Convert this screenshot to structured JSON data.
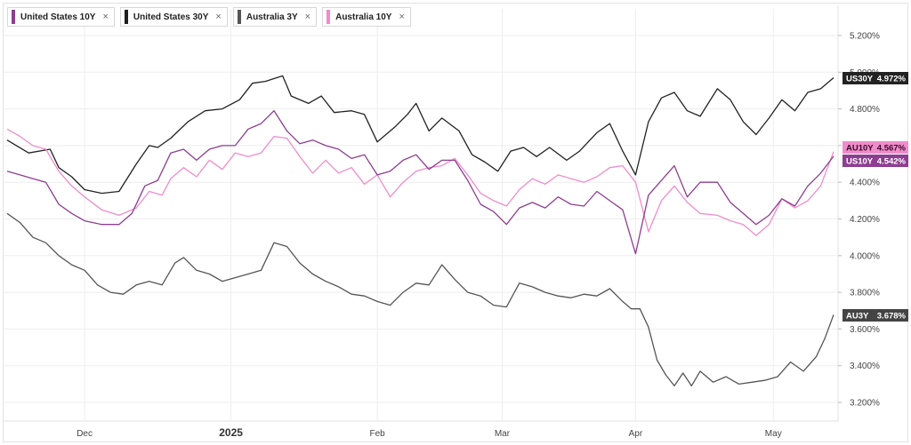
{
  "legend": [
    {
      "name": "United States 10Y",
      "color": "#8e3d91",
      "close": "×"
    },
    {
      "name": "United States 30Y",
      "color": "#1f1f1f",
      "close": "×"
    },
    {
      "name": "Australia 3Y",
      "color": "#555555",
      "close": "×"
    },
    {
      "name": "Australia 10Y",
      "color": "#f08ccb",
      "close": "×"
    }
  ],
  "chart_data": {
    "type": "line",
    "x_axis": {
      "labels": [
        {
          "label": "Dec",
          "index": 18
        },
        {
          "label": "2025",
          "index": 52,
          "bold": true
        },
        {
          "label": "Feb",
          "index": 86
        },
        {
          "label": "Mar",
          "index": 115
        },
        {
          "label": "Apr",
          "index": 146
        },
        {
          "label": "May",
          "index": 178
        }
      ],
      "count": 193
    },
    "y_axis": {
      "ticks": [
        "5.200%",
        "5.000%",
        "4.800%",
        "4.600%",
        "4.400%",
        "4.200%",
        "4.000%",
        "3.800%",
        "3.600%",
        "3.400%",
        "3.200%"
      ],
      "tick_values": [
        5.2,
        5.0,
        4.8,
        4.6,
        4.4,
        4.2,
        4.0,
        3.8,
        3.6,
        3.4,
        3.2
      ],
      "min": 3.1,
      "max": 5.3,
      "grid": true
    },
    "series": [
      {
        "key": "US30Y",
        "name": "United States 30Y",
        "color": "#222222",
        "tag": "US30Y",
        "last_label": "4.972%",
        "points": [
          [
            0,
            4.63
          ],
          [
            5,
            4.56
          ],
          [
            10,
            4.58
          ],
          [
            12,
            4.48
          ],
          [
            15,
            4.43
          ],
          [
            18,
            4.36
          ],
          [
            22,
            4.34
          ],
          [
            26,
            4.35
          ],
          [
            30,
            4.5
          ],
          [
            33,
            4.6
          ],
          [
            35,
            4.59
          ],
          [
            38,
            4.64
          ],
          [
            42,
            4.73
          ],
          [
            46,
            4.79
          ],
          [
            50,
            4.8
          ],
          [
            54,
            4.85
          ],
          [
            57,
            4.94
          ],
          [
            60,
            4.95
          ],
          [
            64,
            4.98
          ],
          [
            66,
            4.87
          ],
          [
            70,
            4.83
          ],
          [
            73,
            4.87
          ],
          [
            76,
            4.78
          ],
          [
            80,
            4.79
          ],
          [
            83,
            4.77
          ],
          [
            86,
            4.62
          ],
          [
            90,
            4.7
          ],
          [
            93,
            4.77
          ],
          [
            95,
            4.83
          ],
          [
            98,
            4.68
          ],
          [
            101,
            4.75
          ],
          [
            105,
            4.68
          ],
          [
            108,
            4.55
          ],
          [
            111,
            4.51
          ],
          [
            114,
            4.46
          ],
          [
            117,
            4.57
          ],
          [
            120,
            4.59
          ],
          [
            123,
            4.54
          ],
          [
            126,
            4.59
          ],
          [
            130,
            4.52
          ],
          [
            133,
            4.57
          ],
          [
            137,
            4.67
          ],
          [
            140,
            4.72
          ],
          [
            143,
            4.57
          ],
          [
            146,
            4.44
          ],
          [
            149,
            4.73
          ],
          [
            152,
            4.86
          ],
          [
            155,
            4.89
          ],
          [
            158,
            4.79
          ],
          [
            161,
            4.76
          ],
          [
            165,
            4.91
          ],
          [
            168,
            4.85
          ],
          [
            171,
            4.73
          ],
          [
            174,
            4.66
          ],
          [
            177,
            4.75
          ],
          [
            180,
            4.85
          ],
          [
            183,
            4.79
          ],
          [
            186,
            4.89
          ],
          [
            189,
            4.91
          ],
          [
            192,
            4.97
          ]
        ]
      },
      {
        "key": "AU10Y",
        "name": "Australia 10Y",
        "color": "#f08ccb",
        "tag": "AU10Y",
        "last_label": "4.567%",
        "points": [
          [
            0,
            4.69
          ],
          [
            3,
            4.65
          ],
          [
            6,
            4.6
          ],
          [
            9,
            4.58
          ],
          [
            12,
            4.46
          ],
          [
            15,
            4.38
          ],
          [
            18,
            4.32
          ],
          [
            22,
            4.25
          ],
          [
            26,
            4.22
          ],
          [
            30,
            4.26
          ],
          [
            33,
            4.35
          ],
          [
            36,
            4.33
          ],
          [
            38,
            4.42
          ],
          [
            41,
            4.48
          ],
          [
            44,
            4.43
          ],
          [
            47,
            4.52
          ],
          [
            50,
            4.47
          ],
          [
            53,
            4.56
          ],
          [
            56,
            4.54
          ],
          [
            59,
            4.56
          ],
          [
            62,
            4.65
          ],
          [
            65,
            4.64
          ],
          [
            68,
            4.54
          ],
          [
            71,
            4.45
          ],
          [
            74,
            4.52
          ],
          [
            77,
            4.45
          ],
          [
            80,
            4.48
          ],
          [
            83,
            4.39
          ],
          [
            86,
            4.44
          ],
          [
            89,
            4.32
          ],
          [
            92,
            4.4
          ],
          [
            95,
            4.46
          ],
          [
            98,
            4.48
          ],
          [
            101,
            4.49
          ],
          [
            104,
            4.53
          ],
          [
            107,
            4.44
          ],
          [
            110,
            4.34
          ],
          [
            113,
            4.3
          ],
          [
            116,
            4.27
          ],
          [
            119,
            4.36
          ],
          [
            122,
            4.42
          ],
          [
            125,
            4.39
          ],
          [
            128,
            4.44
          ],
          [
            131,
            4.42
          ],
          [
            134,
            4.4
          ],
          [
            137,
            4.43
          ],
          [
            140,
            4.48
          ],
          [
            143,
            4.49
          ],
          [
            146,
            4.4
          ],
          [
            149,
            4.13
          ],
          [
            152,
            4.3
          ],
          [
            155,
            4.38
          ],
          [
            158,
            4.29
          ],
          [
            161,
            4.23
          ],
          [
            165,
            4.22
          ],
          [
            168,
            4.19
          ],
          [
            171,
            4.17
          ],
          [
            174,
            4.11
          ],
          [
            177,
            4.17
          ],
          [
            180,
            4.31
          ],
          [
            183,
            4.26
          ],
          [
            186,
            4.3
          ],
          [
            189,
            4.38
          ],
          [
            192,
            4.567
          ]
        ]
      },
      {
        "key": "US10Y",
        "name": "United States 10Y",
        "color": "#8e3d91",
        "tag": "US10Y",
        "last_label": "4.542%",
        "points": [
          [
            0,
            4.46
          ],
          [
            3,
            4.44
          ],
          [
            6,
            4.42
          ],
          [
            9,
            4.4
          ],
          [
            12,
            4.28
          ],
          [
            15,
            4.23
          ],
          [
            18,
            4.19
          ],
          [
            22,
            4.17
          ],
          [
            26,
            4.17
          ],
          [
            29,
            4.23
          ],
          [
            32,
            4.38
          ],
          [
            35,
            4.41
          ],
          [
            38,
            4.56
          ],
          [
            41,
            4.58
          ],
          [
            44,
            4.52
          ],
          [
            47,
            4.58
          ],
          [
            50,
            4.6
          ],
          [
            53,
            4.6
          ],
          [
            56,
            4.69
          ],
          [
            59,
            4.72
          ],
          [
            62,
            4.79
          ],
          [
            65,
            4.68
          ],
          [
            68,
            4.61
          ],
          [
            71,
            4.63
          ],
          [
            74,
            4.6
          ],
          [
            77,
            4.58
          ],
          [
            80,
            4.53
          ],
          [
            83,
            4.55
          ],
          [
            86,
            4.44
          ],
          [
            89,
            4.46
          ],
          [
            92,
            4.52
          ],
          [
            95,
            4.55
          ],
          [
            98,
            4.47
          ],
          [
            101,
            4.52
          ],
          [
            104,
            4.52
          ],
          [
            107,
            4.41
          ],
          [
            110,
            4.28
          ],
          [
            113,
            4.24
          ],
          [
            116,
            4.17
          ],
          [
            119,
            4.26
          ],
          [
            122,
            4.29
          ],
          [
            125,
            4.26
          ],
          [
            128,
            4.32
          ],
          [
            131,
            4.28
          ],
          [
            134,
            4.27
          ],
          [
            137,
            4.35
          ],
          [
            140,
            4.3
          ],
          [
            143,
            4.25
          ],
          [
            146,
            4.01
          ],
          [
            149,
            4.33
          ],
          [
            152,
            4.41
          ],
          [
            155,
            4.49
          ],
          [
            158,
            4.32
          ],
          [
            161,
            4.4
          ],
          [
            165,
            4.4
          ],
          [
            168,
            4.29
          ],
          [
            171,
            4.23
          ],
          [
            174,
            4.17
          ],
          [
            177,
            4.22
          ],
          [
            180,
            4.31
          ],
          [
            183,
            4.27
          ],
          [
            186,
            4.38
          ],
          [
            189,
            4.45
          ],
          [
            192,
            4.542
          ]
        ]
      },
      {
        "key": "AU3Y",
        "name": "Australia 3Y",
        "color": "#555555",
        "tag": "AU3Y",
        "last_label": "3.678%",
        "points": [
          [
            0,
            4.23
          ],
          [
            3,
            4.18
          ],
          [
            6,
            4.1
          ],
          [
            9,
            4.07
          ],
          [
            12,
            4.0
          ],
          [
            15,
            3.95
          ],
          [
            18,
            3.92
          ],
          [
            21,
            3.84
          ],
          [
            24,
            3.8
          ],
          [
            27,
            3.79
          ],
          [
            30,
            3.84
          ],
          [
            33,
            3.86
          ],
          [
            36,
            3.84
          ],
          [
            39,
            3.96
          ],
          [
            41,
            3.99
          ],
          [
            44,
            3.92
          ],
          [
            47,
            3.9
          ],
          [
            50,
            3.86
          ],
          [
            53,
            3.88
          ],
          [
            56,
            3.9
          ],
          [
            59,
            3.92
          ],
          [
            62,
            4.07
          ],
          [
            65,
            4.05
          ],
          [
            68,
            3.96
          ],
          [
            71,
            3.9
          ],
          [
            74,
            3.86
          ],
          [
            77,
            3.83
          ],
          [
            80,
            3.79
          ],
          [
            83,
            3.78
          ],
          [
            86,
            3.75
          ],
          [
            89,
            3.73
          ],
          [
            92,
            3.8
          ],
          [
            95,
            3.85
          ],
          [
            98,
            3.84
          ],
          [
            101,
            3.95
          ],
          [
            104,
            3.87
          ],
          [
            107,
            3.8
          ],
          [
            110,
            3.78
          ],
          [
            113,
            3.73
          ],
          [
            116,
            3.72
          ],
          [
            119,
            3.85
          ],
          [
            122,
            3.83
          ],
          [
            125,
            3.8
          ],
          [
            128,
            3.78
          ],
          [
            131,
            3.77
          ],
          [
            134,
            3.79
          ],
          [
            137,
            3.78
          ],
          [
            140,
            3.82
          ],
          [
            143,
            3.75
          ],
          [
            145,
            3.71
          ],
          [
            147,
            3.71
          ],
          [
            149,
            3.61
          ],
          [
            151,
            3.43
          ],
          [
            153,
            3.35
          ],
          [
            155,
            3.29
          ],
          [
            157,
            3.36
          ],
          [
            159,
            3.29
          ],
          [
            161,
            3.37
          ],
          [
            164,
            3.31
          ],
          [
            167,
            3.34
          ],
          [
            170,
            3.3
          ],
          [
            173,
            3.31
          ],
          [
            176,
            3.32
          ],
          [
            179,
            3.34
          ],
          [
            182,
            3.42
          ],
          [
            185,
            3.37
          ],
          [
            188,
            3.45
          ],
          [
            190,
            3.55
          ],
          [
            192,
            3.678
          ]
        ]
      }
    ]
  }
}
